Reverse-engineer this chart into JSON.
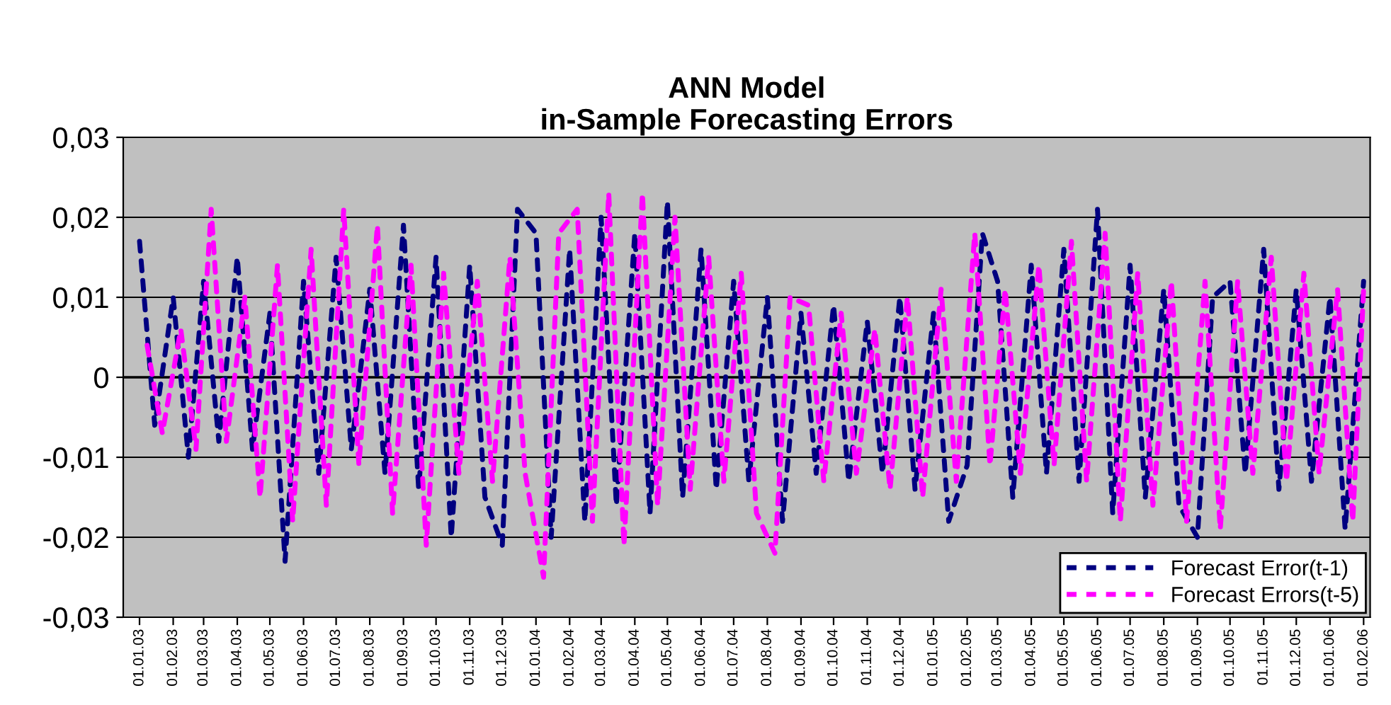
{
  "chart_data": {
    "type": "line",
    "title": "ANN Model\nin-Sample Forecasting Errors",
    "x": [
      "2003-01-01",
      "2003-01-15",
      "2003-02-01",
      "2003-02-15",
      "2003-03-01",
      "2003-03-15",
      "2003-04-01",
      "2003-04-15",
      "2003-05-01",
      "2003-05-15",
      "2003-06-01",
      "2003-06-15",
      "2003-07-01",
      "2003-07-15",
      "2003-08-01",
      "2003-08-15",
      "2003-09-01",
      "2003-09-15",
      "2003-10-01",
      "2003-10-15",
      "2003-11-01",
      "2003-11-15",
      "2003-12-01",
      "2003-12-15",
      "2004-01-01",
      "2004-01-15",
      "2004-02-01",
      "2004-02-15",
      "2004-03-01",
      "2004-03-15",
      "2004-04-01",
      "2004-04-15",
      "2004-05-01",
      "2004-05-15",
      "2004-06-01",
      "2004-06-15",
      "2004-07-01",
      "2004-07-15",
      "2004-08-01",
      "2004-08-15",
      "2004-09-01",
      "2004-09-15",
      "2004-10-01",
      "2004-10-15",
      "2004-11-01",
      "2004-11-15",
      "2004-12-01",
      "2004-12-15",
      "2005-01-01",
      "2005-01-15",
      "2005-02-01",
      "2005-02-15",
      "2005-03-01",
      "2005-03-15",
      "2005-04-01",
      "2005-04-15",
      "2005-05-01",
      "2005-05-15",
      "2005-06-01",
      "2005-06-15",
      "2005-07-01",
      "2005-07-15",
      "2005-08-01",
      "2005-08-15",
      "2005-09-01",
      "2005-09-15",
      "2005-10-01",
      "2005-10-15",
      "2005-11-01",
      "2005-11-15",
      "2005-12-01",
      "2005-12-15",
      "2006-01-01",
      "2006-01-15",
      "2006-02-01"
    ],
    "series": [
      {
        "name": "Forecast Error(t-1)",
        "color": "#000080",
        "values": [
          0.017,
          -0.006,
          0.01,
          -0.01,
          0.012,
          -0.008,
          0.015,
          -0.009,
          0.008,
          -0.023,
          0.012,
          -0.012,
          0.015,
          -0.009,
          0.011,
          -0.012,
          0.019,
          -0.014,
          0.015,
          -0.02,
          0.014,
          -0.015,
          -0.021,
          0.021,
          0.018,
          -0.02,
          0.016,
          -0.018,
          0.02,
          -0.016,
          0.018,
          -0.017,
          0.022,
          -0.015,
          0.016,
          -0.014,
          0.012,
          -0.013,
          0.01,
          -0.018,
          0.008,
          -0.012,
          0.009,
          -0.013,
          0.007,
          -0.012,
          0.01,
          -0.014,
          0.008,
          -0.018,
          -0.011,
          0.018,
          0.012,
          -0.015,
          0.014,
          -0.012,
          0.016,
          -0.013,
          0.021,
          -0.017,
          0.014,
          -0.015,
          0.011,
          -0.016,
          -0.02,
          0.01,
          0.012,
          -0.012,
          0.016,
          -0.014,
          0.011,
          -0.013,
          0.01,
          -0.019,
          0.012
        ]
      },
      {
        "name": "Forecast Errors(t-5)",
        "color": "#ff00ff",
        "x": [
          "2003-01-08",
          "2003-01-22",
          "2003-02-08",
          "2003-02-22",
          "2003-03-08",
          "2003-03-22",
          "2003-04-08",
          "2003-04-22",
          "2003-05-08",
          "2003-05-22",
          "2003-06-08",
          "2003-06-22",
          "2003-07-08",
          "2003-07-22",
          "2003-08-08",
          "2003-08-22",
          "2003-09-08",
          "2003-09-22",
          "2003-10-08",
          "2003-10-22",
          "2003-11-08",
          "2003-11-22",
          "2003-12-08",
          "2003-12-22",
          "2004-01-08",
          "2004-01-22",
          "2004-02-08",
          "2004-02-22",
          "2004-03-08",
          "2004-03-22",
          "2004-04-08",
          "2004-04-22",
          "2004-05-08",
          "2004-05-22",
          "2004-06-08",
          "2004-06-22",
          "2004-07-08",
          "2004-07-22",
          "2004-08-08",
          "2004-08-22",
          "2004-09-08",
          "2004-09-22",
          "2004-10-08",
          "2004-10-22",
          "2004-11-08",
          "2004-11-22",
          "2004-12-08",
          "2004-12-22",
          "2005-01-08",
          "2005-01-22",
          "2005-02-08",
          "2005-02-22",
          "2005-03-08",
          "2005-03-22",
          "2005-04-08",
          "2005-04-22",
          "2005-05-08",
          "2005-05-22",
          "2005-06-08",
          "2005-06-22",
          "2005-07-08",
          "2005-07-22",
          "2005-08-08",
          "2005-08-22",
          "2005-09-08",
          "2005-09-22",
          "2005-10-08",
          "2005-10-22",
          "2005-11-08",
          "2005-11-22",
          "2005-12-08",
          "2005-12-22",
          "2006-01-08",
          "2006-01-22",
          "2006-02-01"
        ],
        "values": [
          0.004,
          -0.007,
          0.006,
          -0.009,
          0.021,
          -0.008,
          0.01,
          -0.015,
          0.014,
          -0.018,
          0.016,
          -0.016,
          0.021,
          -0.011,
          0.019,
          -0.017,
          0.014,
          -0.021,
          0.013,
          -0.012,
          0.012,
          -0.013,
          0.015,
          -0.012,
          -0.025,
          0.018,
          0.021,
          -0.018,
          0.023,
          -0.021,
          0.023,
          -0.016,
          0.02,
          -0.014,
          0.015,
          -0.013,
          0.013,
          -0.017,
          -0.022,
          0.01,
          0.009,
          -0.013,
          0.008,
          -0.012,
          0.006,
          -0.014,
          0.01,
          -0.015,
          0.011,
          -0.013,
          0.018,
          -0.011,
          0.011,
          -0.012,
          0.014,
          -0.011,
          0.017,
          -0.013,
          0.018,
          -0.018,
          0.013,
          -0.016,
          0.012,
          -0.018,
          0.012,
          -0.019,
          0.012,
          -0.012,
          0.015,
          -0.013,
          0.013,
          -0.012,
          0.011,
          -0.018,
          0.011
        ]
      }
    ],
    "xlim": [
      "2002-12-17",
      "2006-02-07"
    ],
    "xticks": [
      {
        "value": "2003-01-01",
        "label": "01.01.03"
      },
      {
        "value": "2003-02-01",
        "label": "01.02.03"
      },
      {
        "value": "2003-03-01",
        "label": "01.03.03"
      },
      {
        "value": "2003-04-01",
        "label": "01.04.03"
      },
      {
        "value": "2003-05-01",
        "label": "01.05.03"
      },
      {
        "value": "2003-06-01",
        "label": "01.06.03"
      },
      {
        "value": "2003-07-01",
        "label": "01.07.03"
      },
      {
        "value": "2003-08-01",
        "label": "01.08.03"
      },
      {
        "value": "2003-09-01",
        "label": "01.09.03"
      },
      {
        "value": "2003-10-01",
        "label": "01.10.03"
      },
      {
        "value": "2003-11-01",
        "label": "01.11.03"
      },
      {
        "value": "2003-12-01",
        "label": "01.12.03"
      },
      {
        "value": "2004-01-01",
        "label": "01.01.04"
      },
      {
        "value": "2004-02-01",
        "label": "01.02.04"
      },
      {
        "value": "2004-03-01",
        "label": "01.03.04"
      },
      {
        "value": "2004-04-01",
        "label": "01.04.04"
      },
      {
        "value": "2004-05-01",
        "label": "01.05.04"
      },
      {
        "value": "2004-06-01",
        "label": "01.06.04"
      },
      {
        "value": "2004-07-01",
        "label": "01.07.04"
      },
      {
        "value": "2004-08-01",
        "label": "01.08.04"
      },
      {
        "value": "2004-09-01",
        "label": "01.09.04"
      },
      {
        "value": "2004-10-01",
        "label": "01.10.04"
      },
      {
        "value": "2004-11-01",
        "label": "01.11.04"
      },
      {
        "value": "2004-12-01",
        "label": "01.12.04"
      },
      {
        "value": "2005-01-01",
        "label": "01.01.05"
      },
      {
        "value": "2005-02-01",
        "label": "01.02.05"
      },
      {
        "value": "2005-03-01",
        "label": "01.03.05"
      },
      {
        "value": "2005-04-01",
        "label": "01.04.05"
      },
      {
        "value": "2005-05-01",
        "label": "01.05.05"
      },
      {
        "value": "2005-06-01",
        "label": "01.06.05"
      },
      {
        "value": "2005-07-01",
        "label": "01.07.05"
      },
      {
        "value": "2005-08-01",
        "label": "01.08.05"
      },
      {
        "value": "2005-09-01",
        "label": "01.09.05"
      },
      {
        "value": "2005-10-01",
        "label": "01.10.05"
      },
      {
        "value": "2005-11-01",
        "label": "01.11.05"
      },
      {
        "value": "2005-12-01",
        "label": "01.12.05"
      },
      {
        "value": "2006-01-01",
        "label": "01.01.06"
      },
      {
        "value": "2006-02-01",
        "label": "01.02.06"
      }
    ],
    "ylim": [
      -0.03,
      0.03
    ],
    "yticks": [
      {
        "value": -0.03,
        "label": "-0,03"
      },
      {
        "value": -0.02,
        "label": "-0,02"
      },
      {
        "value": -0.01,
        "label": "-0,01"
      },
      {
        "value": 0,
        "label": "0"
      },
      {
        "value": 0.01,
        "label": "0,01"
      },
      {
        "value": 0.02,
        "label": "0,02"
      },
      {
        "value": 0.03,
        "label": "0,03"
      }
    ],
    "grid": "y",
    "legend": "bottom right",
    "line_style": "dashed",
    "marker": "none"
  }
}
